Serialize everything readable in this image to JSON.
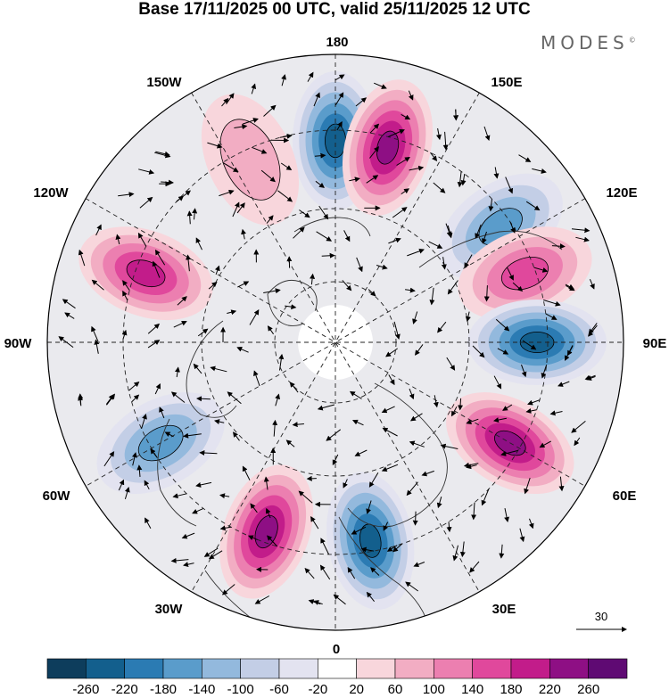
{
  "header": {
    "title": "Base 17/11/2025 00 UTC, valid 25/11/2025 12 UTC",
    "brand": "MODES"
  },
  "map": {
    "projection": "north polar stereographic",
    "longitude_labels": [
      "180",
      "150E",
      "120E",
      "90E",
      "60E",
      "30E",
      "0",
      "30W",
      "60W",
      "90W",
      "120W",
      "150W"
    ],
    "vector_reference": {
      "label": "30"
    },
    "anomaly_centers": [
      {
        "sign": "negative",
        "lon": "180",
        "strength": -240
      },
      {
        "sign": "positive",
        "lon": "165E",
        "strength": 240
      },
      {
        "sign": "negative",
        "lon": "125E",
        "strength": -150
      },
      {
        "sign": "positive",
        "lon": "110E",
        "strength": 150
      },
      {
        "sign": "negative",
        "lon": "90E",
        "strength": -220
      },
      {
        "sign": "positive",
        "lon": "60E",
        "strength": 230
      },
      {
        "sign": "negative",
        "lon": "10E",
        "strength": -250
      },
      {
        "sign": "positive",
        "lon": "20W",
        "strength": 230
      },
      {
        "sign": "negative",
        "lon": "60W",
        "strength": -170
      },
      {
        "sign": "positive",
        "lon": "110W",
        "strength": 190
      },
      {
        "sign": "positive",
        "lon": "155W",
        "strength": 80
      }
    ]
  },
  "colorbar": {
    "ticks": [
      "-260",
      "-220",
      "-180",
      "-140",
      "-100",
      "-60",
      "-20",
      "20",
      "60",
      "100",
      "140",
      "180",
      "220",
      "260"
    ],
    "colors": [
      "#0d3d5c",
      "#135f8d",
      "#2b7bb3",
      "#5a9ccb",
      "#93b9dd",
      "#c3cee6",
      "#e3e3f0",
      "#ffffff",
      "#f8d6dc",
      "#f2adc3",
      "#ec7fb0",
      "#e0489c",
      "#c21c8a",
      "#8e0f84",
      "#5f0a73"
    ]
  }
}
